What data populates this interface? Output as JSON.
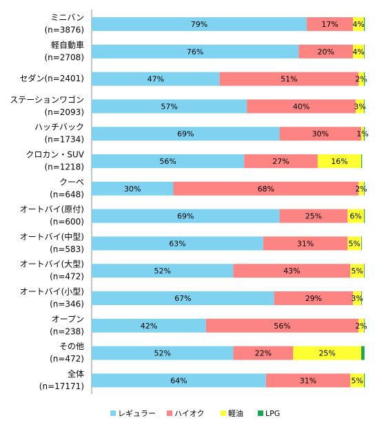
{
  "chart_data": {
    "type": "stacked-bar-horizontal",
    "xlim": [
      0,
      100
    ],
    "categories": [
      [
        "ミニバン",
        "(n=3876)"
      ],
      [
        "軽自動車",
        "(n=2708)"
      ],
      [
        "セダン(n=2401)"
      ],
      [
        "ステーションワゴン",
        "(n=2093)"
      ],
      [
        "ハッチバック",
        "(n=1734)"
      ],
      [
        "クロカン・SUV",
        "(n=1218)"
      ],
      [
        "クーペ",
        "(n=648)"
      ],
      [
        "オートバイ(原付)",
        "(n=600)"
      ],
      [
        "オートバイ(中型)",
        "(n=583)"
      ],
      [
        "オートバイ(大型)",
        "(n=472)"
      ],
      [
        "オートバイ(小型)",
        "(n=346)"
      ],
      [
        "オープン",
        "(n=238)"
      ],
      [
        "その他",
        "(n=472)"
      ],
      [
        "全体",
        "(n=17171)"
      ]
    ],
    "series": [
      {
        "name": "レギュラー",
        "color": "#7fd3f1",
        "values": [
          79,
          76,
          47,
          57,
          69,
          56,
          30,
          69,
          63,
          52,
          67,
          42,
          52,
          64
        ],
        "value_labels": [
          "79%",
          "76%",
          "47%",
          "57%",
          "69%",
          "56%",
          "30%",
          "69%",
          "63%",
          "52%",
          "67%",
          "42%",
          "52%",
          "64%"
        ]
      },
      {
        "name": "ハイオク",
        "color": "#fc8583",
        "values": [
          17,
          20,
          51,
          40,
          30,
          27,
          68,
          25,
          31,
          43,
          29,
          56,
          22,
          31
        ],
        "value_labels": [
          "17%",
          "20%",
          "51%",
          "40%",
          "30%",
          "27%",
          "68%",
          "25%",
          "31%",
          "43%",
          "29%",
          "56%",
          "22%",
          "31%"
        ]
      },
      {
        "name": "軽油",
        "color": "#ffff33",
        "values": [
          4,
          4,
          2,
          3,
          1,
          16,
          2,
          6,
          5,
          5,
          3,
          2,
          25,
          5
        ],
        "value_labels": [
          "4%",
          "4%",
          "2%",
          "3%",
          "1%",
          "16%",
          "2%",
          "6%",
          "5%",
          "5%",
          "3%",
          "2%",
          "25%",
          "5%"
        ]
      },
      {
        "name": "LPG",
        "color": "#1aa64a",
        "values": [
          0.3,
          0.2,
          0.3,
          0.2,
          0.3,
          0.3,
          0.2,
          0.3,
          0.2,
          0.2,
          0.2,
          0.2,
          1.2,
          0.3
        ]
      }
    ]
  }
}
